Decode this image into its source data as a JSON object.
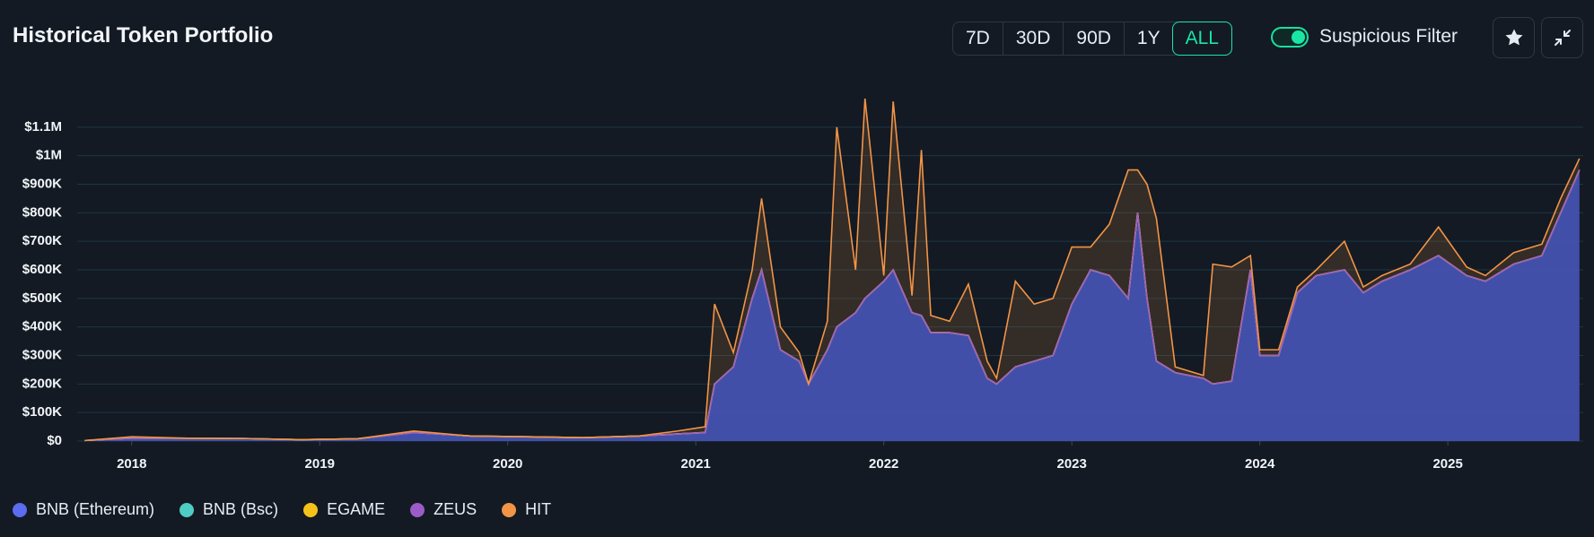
{
  "chart_data": {
    "type": "stacked-area",
    "title": "Historical Token Portfolio",
    "x": [
      2017.75,
      2018.0,
      2018.3,
      2018.6,
      2018.9,
      2019.2,
      2019.5,
      2019.8,
      2020.1,
      2020.4,
      2020.7,
      2020.9,
      2021.05,
      2021.1,
      2021.2,
      2021.3,
      2021.35,
      2021.45,
      2021.55,
      2021.6,
      2021.7,
      2021.75,
      2021.85,
      2021.9,
      2022.0,
      2022.05,
      2022.15,
      2022.2,
      2022.25,
      2022.35,
      2022.45,
      2022.55,
      2022.6,
      2022.7,
      2022.8,
      2022.9,
      2023.0,
      2023.1,
      2023.2,
      2023.3,
      2023.35,
      2023.4,
      2023.45,
      2023.55,
      2023.7,
      2023.75,
      2023.85,
      2023.95,
      2024.0,
      2024.1,
      2024.2,
      2024.3,
      2024.45,
      2024.55,
      2024.65,
      2024.8,
      2024.95,
      2025.1,
      2025.2,
      2025.35,
      2025.5,
      2025.6,
      2025.7
    ],
    "series": [
      {
        "name": "BNB (Ethereum)",
        "color": "#5b6cf0",
        "values": [
          2000,
          10000,
          10000,
          9000,
          5000,
          8000,
          30000,
          18000,
          15000,
          12000,
          18000,
          25000,
          30000,
          200000,
          260000,
          500000,
          600000,
          320000,
          280000,
          200000,
          320000,
          400000,
          450000,
          500000,
          560000,
          600000,
          450000,
          440000,
          380000,
          380000,
          370000,
          220000,
          200000,
          260000,
          280000,
          300000,
          480000,
          600000,
          580000,
          500000,
          800000,
          500000,
          280000,
          240000,
          220000,
          200000,
          210000,
          600000,
          300000,
          300000,
          520000,
          580000,
          600000,
          520000,
          560000,
          600000,
          650000,
          580000,
          560000,
          620000,
          650000,
          800000,
          950000
        ]
      },
      {
        "name": "BNB (Bsc)",
        "color": "#4ecdc4",
        "values": [
          0,
          0,
          0,
          0,
          0,
          0,
          0,
          0,
          0,
          0,
          0,
          0,
          0,
          0,
          0,
          0,
          0,
          0,
          0,
          0,
          0,
          0,
          0,
          0,
          0,
          0,
          0,
          0,
          0,
          0,
          0,
          0,
          0,
          0,
          0,
          0,
          0,
          0,
          0,
          0,
          0,
          0,
          0,
          0,
          0,
          0,
          0,
          0,
          0,
          0,
          0,
          0,
          0,
          0,
          0,
          0,
          0,
          0,
          0,
          0,
          0,
          0,
          0
        ]
      },
      {
        "name": "EGAME",
        "color": "#f5c21b",
        "values": [
          0,
          0,
          0,
          0,
          0,
          0,
          0,
          0,
          0,
          0,
          0,
          0,
          0,
          0,
          0,
          0,
          0,
          0,
          0,
          0,
          0,
          0,
          0,
          0,
          0,
          0,
          0,
          0,
          0,
          0,
          0,
          0,
          0,
          0,
          0,
          0,
          0,
          0,
          0,
          0,
          0,
          0,
          0,
          0,
          0,
          0,
          0,
          0,
          0,
          0,
          0,
          0,
          0,
          0,
          0,
          0,
          0,
          0,
          0,
          0,
          0,
          0,
          0
        ]
      },
      {
        "name": "ZEUS",
        "color": "#9b5cc8",
        "values": [
          0,
          0,
          0,
          0,
          0,
          0,
          0,
          0,
          0,
          0,
          0,
          0,
          0,
          0,
          0,
          0,
          0,
          0,
          0,
          0,
          0,
          0,
          0,
          0,
          0,
          0,
          0,
          0,
          0,
          0,
          0,
          0,
          0,
          0,
          0,
          0,
          0,
          0,
          0,
          0,
          0,
          0,
          0,
          0,
          0,
          0,
          0,
          0,
          0,
          0,
          0,
          0,
          0,
          0,
          0,
          0,
          0,
          0,
          0,
          0,
          0,
          0,
          0
        ]
      },
      {
        "name": "HIT",
        "color": "#f29446",
        "values": [
          0,
          5000,
          0,
          0,
          0,
          0,
          5000,
          0,
          0,
          0,
          0,
          10000,
          20000,
          280000,
          50000,
          100000,
          250000,
          80000,
          30000,
          0,
          100000,
          700000,
          150000,
          700000,
          20000,
          590000,
          60000,
          580000,
          60000,
          40000,
          180000,
          60000,
          20000,
          300000,
          200000,
          200000,
          200000,
          80000,
          180000,
          450000,
          150000,
          400000,
          500000,
          20000,
          10000,
          420000,
          400000,
          50000,
          20000,
          20000,
          20000,
          20000,
          100000,
          20000,
          20000,
          20000,
          100000,
          30000,
          20000,
          40000,
          40000,
          50000,
          40000
        ]
      }
    ],
    "xlim": [
      2017.71,
      2025.72
    ],
    "xticks": [
      2018,
      2019,
      2020,
      2021,
      2022,
      2023,
      2024,
      2025
    ],
    "ylim": [
      0,
      1200000
    ],
    "yticks": [
      {
        "value": 0,
        "label": "$0"
      },
      {
        "value": 100000,
        "label": "$100K"
      },
      {
        "value": 200000,
        "label": "$200K"
      },
      {
        "value": 300000,
        "label": "$300K"
      },
      {
        "value": 400000,
        "label": "$400K"
      },
      {
        "value": 500000,
        "label": "$500K"
      },
      {
        "value": 600000,
        "label": "$600K"
      },
      {
        "value": 700000,
        "label": "$700K"
      },
      {
        "value": 800000,
        "label": "$800K"
      },
      {
        "value": 900000,
        "label": "$900K"
      },
      {
        "value": 1000000,
        "label": "$1M"
      },
      {
        "value": 1100000,
        "label": "$1.1M"
      }
    ],
    "grid": true,
    "legend": "bottom-left"
  },
  "controls": {
    "ranges": [
      "7D",
      "30D",
      "90D",
      "1Y",
      "ALL"
    ],
    "active_range": "ALL",
    "filter_label": "Suspicious Filter",
    "filter_on": true
  }
}
